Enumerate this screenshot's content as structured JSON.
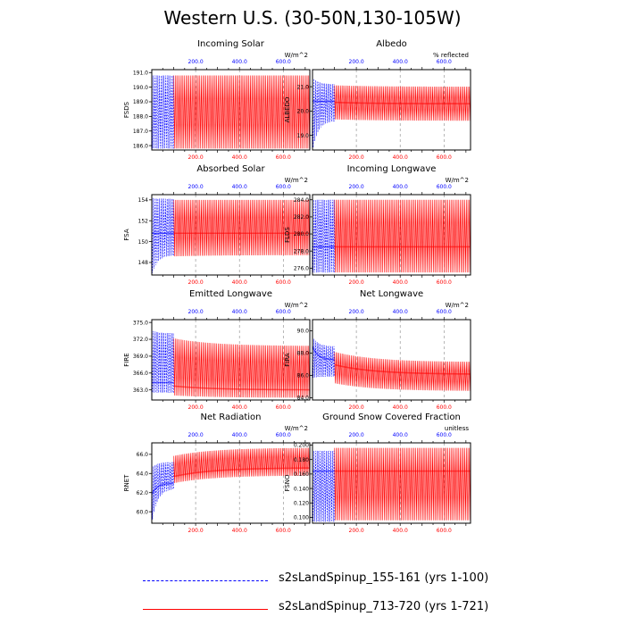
{
  "title": "Western U.S. (30-50N,130-105W)",
  "colors": {
    "run1": "#0000ff",
    "run2": "#ff0000",
    "grid": "#888888",
    "axis": "#000000"
  },
  "legend": [
    {
      "label": "s2sLandSpinup_155-161 (yrs 1-100)",
      "color": "#0000ff",
      "style": "dashed"
    },
    {
      "label": "s2sLandSpinup_713-720 (yrs 1-721)",
      "color": "#ff0000",
      "style": "solid"
    }
  ],
  "chart_data": [
    {
      "type": "line",
      "title": "Incoming Solar",
      "ylabel": "FSDS",
      "units": "W/m^2",
      "ylim": [
        185.7,
        191.2
      ],
      "yticks": [
        "191.0",
        "190.0",
        "189.0",
        "188.0",
        "187.0",
        "186.0"
      ],
      "top_ticks": [
        "200.0",
        "400.0",
        "600.0"
      ],
      "bottom_ticks": [
        "200.0",
        "400.0",
        "600.0"
      ],
      "xlim": [
        0,
        721
      ],
      "run1_years": 100,
      "run2_years": 721,
      "run1": {
        "low_start": 185.8,
        "low_end": 185.8,
        "high_start": 190.8,
        "high_end": 190.8,
        "mid_start": null,
        "mid_end": null
      },
      "run2": {
        "low_start": 185.8,
        "low_end": 185.8,
        "high_start": 190.8,
        "high_end": 190.8,
        "mid_start": null,
        "mid_end": null
      }
    },
    {
      "type": "line",
      "title": "Albedo",
      "ylabel": "ALBEDO",
      "units": "% reflected",
      "ylim": [
        18.4,
        21.7
      ],
      "yticks": [
        "21.0",
        "20.0",
        "19.0"
      ],
      "top_ticks": [
        "200.0",
        "400.0",
        "600.0"
      ],
      "bottom_ticks": [
        "200.0",
        "400.0",
        "600.0"
      ],
      "xlim": [
        0,
        721
      ],
      "run1_years": 100,
      "run2_years": 721,
      "run1": {
        "low_start": 18.5,
        "low_end": 19.6,
        "high_start": 21.4,
        "high_end": 21.1,
        "mid_start": 20.4,
        "mid_end": 20.4
      },
      "run2": {
        "low_start": 19.7,
        "low_end": 19.6,
        "high_start": 21.1,
        "high_end": 21.0,
        "mid_start": 20.4,
        "mid_end": 20.3
      }
    },
    {
      "type": "line",
      "title": "Absorbed Solar",
      "ylabel": "FSA",
      "units": "W/m^2",
      "ylim": [
        146.8,
        154.5
      ],
      "yticks": [
        "154",
        "152",
        "150",
        "148"
      ],
      "top_ticks": [
        "200.0",
        "400.0",
        "600.0"
      ],
      "bottom_ticks": [
        "200.0",
        "400.0",
        "600.0"
      ],
      "xlim": [
        0,
        721
      ],
      "run1_years": 100,
      "run2_years": 721,
      "run1": {
        "low_start": 147.0,
        "low_end": 148.7,
        "high_start": 154.2,
        "high_end": 154.1,
        "mid_start": 150.8,
        "mid_end": 150.8
      },
      "run2": {
        "low_start": 148.5,
        "low_end": 148.7,
        "high_start": 154.0,
        "high_end": 154.0,
        "mid_start": 150.8,
        "mid_end": 150.8
      }
    },
    {
      "type": "line",
      "title": "Incoming Longwave",
      "ylabel": "FLDS",
      "units": "W/m^2",
      "ylim": [
        275.2,
        284.6
      ],
      "yticks": [
        "284.0",
        "282.0",
        "280.0",
        "278.0",
        "276.0"
      ],
      "top_ticks": [
        "200.0",
        "400.0",
        "600.0"
      ],
      "bottom_ticks": [
        "200.0",
        "400.0",
        "600.0"
      ],
      "xlim": [
        0,
        721
      ],
      "run1_years": 100,
      "run2_years": 721,
      "run1": {
        "low_start": 275.5,
        "low_end": 275.5,
        "high_start": 284.0,
        "high_end": 284.0,
        "mid_start": 278.5,
        "mid_end": 278.5
      },
      "run2": {
        "low_start": 275.5,
        "low_end": 275.5,
        "high_start": 284.0,
        "high_end": 284.0,
        "mid_start": 278.5,
        "mid_end": 278.5
      }
    },
    {
      "type": "line",
      "title": "Emitted Longwave",
      "ylabel": "FIRE",
      "units": "W/m^2",
      "ylim": [
        361.2,
        375.5
      ],
      "yticks": [
        "375.0",
        "372.0",
        "369.0",
        "366.0",
        "363.0"
      ],
      "top_ticks": [
        "200.0",
        "400.0",
        "600.0"
      ],
      "bottom_ticks": [
        "200.0",
        "400.0",
        "600.0"
      ],
      "xlim": [
        0,
        721
      ],
      "run1_years": 100,
      "run2_years": 721,
      "run1": {
        "low_start": 362.5,
        "low_end": 362.5,
        "high_start": 373.6,
        "high_end": 373.1,
        "mid_start": 364.3,
        "mid_end": 364.3
      },
      "run2": {
        "low_start": 362.3,
        "low_end": 361.6,
        "high_start": 373.2,
        "high_end": 370.8,
        "mid_start": 364.2,
        "mid_end": 363.0
      }
    },
    {
      "type": "line",
      "title": "Net Longwave",
      "ylabel": "FIRA",
      "units": "W/m^2",
      "ylim": [
        83.8,
        91.0
      ],
      "yticks": [
        "90.0",
        "88.0",
        "86.0",
        "84.0"
      ],
      "top_ticks": [
        "200.0",
        "400.0",
        "600.0"
      ],
      "bottom_ticks": [
        "200.0",
        "400.0",
        "600.0"
      ],
      "xlim": [
        0,
        721
      ],
      "run1_years": 100,
      "run2_years": 721,
      "run1": {
        "low_start": 85.8,
        "low_end": 85.9,
        "high_start": 89.5,
        "high_end": 88.6,
        "mid_start": 88.6,
        "mid_end": 87.4
      },
      "run2": {
        "low_start": 85.8,
        "low_end": 84.6,
        "high_start": 88.8,
        "high_end": 87.2,
        "mid_start": 87.6,
        "mid_end": 86.1
      }
    },
    {
      "type": "line",
      "title": "Net Radiation",
      "ylabel": "RNET",
      "units": "W/m^2",
      "ylim": [
        58.8,
        67.2
      ],
      "yticks": [
        "66.0",
        "64.0",
        "62.0",
        "60.0"
      ],
      "top_ticks": [
        "200.0",
        "400.0",
        "600.0"
      ],
      "bottom_ticks": [
        "200.0",
        "400.0",
        "600.0"
      ],
      "xlim": [
        0,
        721
      ],
      "run1_years": 100,
      "run2_years": 721,
      "run1": {
        "low_start": 59.2,
        "low_end": 62.4,
        "high_start": 64.6,
        "high_end": 65.2,
        "mid_start": 61.8,
        "mid_end": 63.0
      },
      "run2": {
        "low_start": 62.4,
        "low_end": 63.8,
        "high_start": 65.2,
        "high_end": 66.7,
        "mid_start": 63.0,
        "mid_end": 64.6
      }
    },
    {
      "type": "line",
      "title": "Ground Snow Covered Fraction",
      "ylabel": "FSNO",
      "units": "unitless",
      "ylim": [
        0.092,
        0.203
      ],
      "yticks": [
        "0.200",
        "0.180",
        "0.160",
        "0.140",
        "0.120",
        "0.100"
      ],
      "top_ticks": [
        "200.0",
        "400.0",
        "600.0"
      ],
      "bottom_ticks": [
        "200.0",
        "400.0",
        "600.0"
      ],
      "xlim": [
        0,
        721
      ],
      "run1_years": 100,
      "run2_years": 721,
      "run1": {
        "low_start": 0.094,
        "low_end": 0.094,
        "high_start": 0.192,
        "high_end": 0.192,
        "mid_start": 0.164,
        "mid_end": 0.164
      },
      "run2": {
        "low_start": 0.096,
        "low_end": 0.096,
        "high_start": 0.196,
        "high_end": 0.196,
        "mid_start": 0.164,
        "mid_end": 0.164
      }
    }
  ]
}
